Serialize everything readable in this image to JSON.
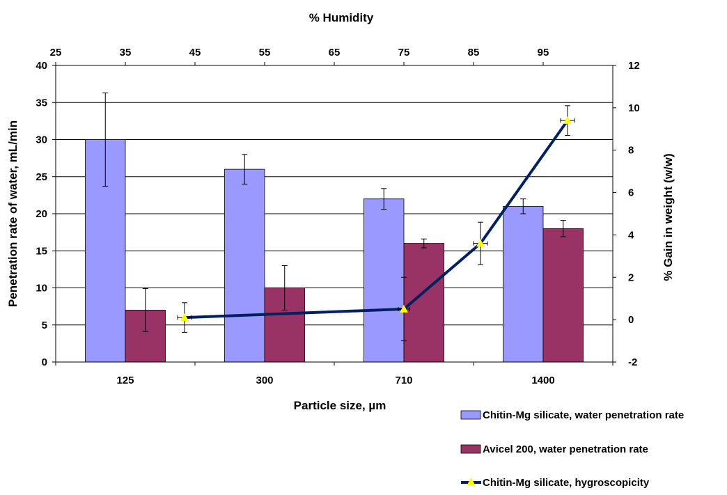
{
  "chart_data": {
    "type": "bar",
    "top_xlabel": "% Humidity",
    "xlabel": "Particle size, µm",
    "ylabel": "Penetration rate of water, mL/min",
    "y2label": "% Gain in weight (w/w)",
    "categories": [
      "125",
      "300",
      "710",
      "1400"
    ],
    "ylim": [
      0,
      40
    ],
    "yticks": [
      0,
      5,
      10,
      15,
      20,
      25,
      30,
      35,
      40
    ],
    "y2lim": [
      -2,
      12
    ],
    "y2ticks": [
      -2,
      0,
      2,
      4,
      6,
      8,
      10,
      12
    ],
    "top_xlim": [
      25,
      105
    ],
    "top_xticks": [
      25,
      35,
      45,
      55,
      65,
      75,
      85,
      95
    ],
    "grid": true,
    "legend_position": "bottom-right",
    "series": [
      {
        "name": "Chitin-Mg silicate, water penetration rate",
        "type": "bar",
        "axis": "left",
        "color": "#9999ff",
        "values": [
          30,
          26,
          22,
          21
        ],
        "errors": [
          6.3,
          2.0,
          1.4,
          1.0
        ]
      },
      {
        "name": "Avicel 200, water penetration rate",
        "type": "bar",
        "axis": "left",
        "color": "#993366",
        "values": [
          7,
          10,
          16,
          18
        ],
        "errors": [
          2.9,
          3.0,
          0.6,
          1.1
        ]
      },
      {
        "name": "Chitin-Mg silicate, hygroscopicity",
        "type": "line",
        "axis": "right",
        "x_axis": "top",
        "color": "#002060",
        "marker_color": "#ffff00",
        "x": [
          43.5,
          75,
          86,
          98.5
        ],
        "y": [
          0.1,
          0.5,
          3.6,
          9.4
        ],
        "y_errors": [
          0.7,
          1.5,
          1.0,
          0.7
        ],
        "x_errors": [
          1.0,
          0.8,
          1.0,
          1.0
        ]
      }
    ]
  }
}
